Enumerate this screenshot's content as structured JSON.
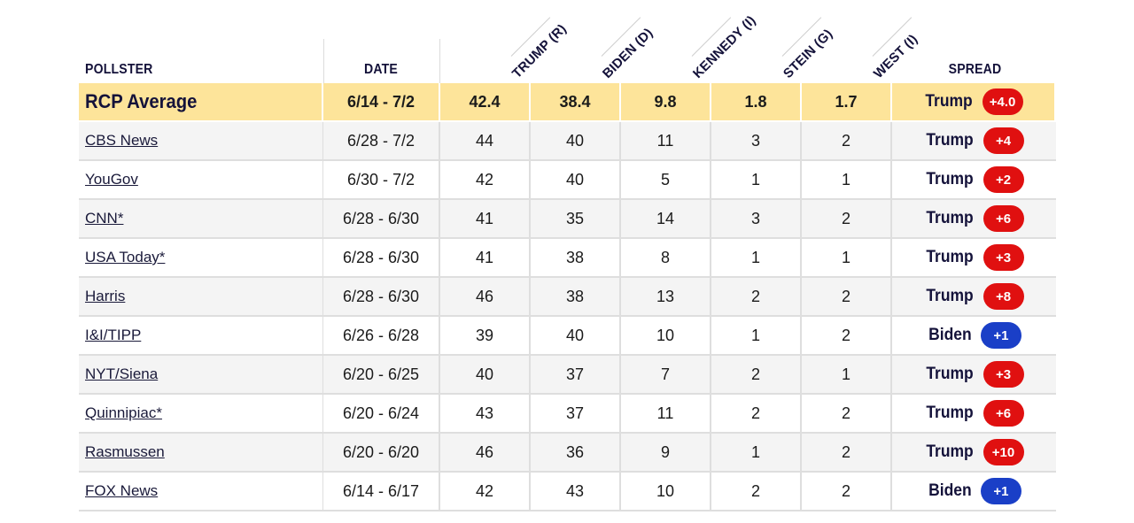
{
  "headers": {
    "pollster": "POLLSTER",
    "date": "DATE",
    "spread": "SPREAD",
    "candidates": [
      "TRUMP (R)",
      "BIDEN (D)",
      "KENNEDY (I)",
      "STEIN (G)",
      "WEST (I)"
    ]
  },
  "colors": {
    "trump": "#e01010",
    "biden": "#1a3fc7",
    "average_row": "#fde49a"
  },
  "average": {
    "pollster": "RCP Average",
    "date": "6/14 - 7/2",
    "values": [
      "42.4",
      "38.4",
      "9.8",
      "1.8",
      "1.7"
    ],
    "leader": "Trump",
    "spread": "+4.0",
    "party": "trump"
  },
  "rows": [
    {
      "pollster": "CBS News",
      "date": "6/28 - 7/2",
      "values": [
        "44",
        "40",
        "11",
        "3",
        "2"
      ],
      "leader": "Trump",
      "spread": "+4",
      "party": "trump"
    },
    {
      "pollster": "YouGov",
      "date": "6/30 - 7/2",
      "values": [
        "42",
        "40",
        "5",
        "1",
        "1"
      ],
      "leader": "Trump",
      "spread": "+2",
      "party": "trump"
    },
    {
      "pollster": "CNN*",
      "date": "6/28 - 6/30",
      "values": [
        "41",
        "35",
        "14",
        "3",
        "2"
      ],
      "leader": "Trump",
      "spread": "+6",
      "party": "trump"
    },
    {
      "pollster": "USA Today*",
      "date": "6/28 - 6/30",
      "values": [
        "41",
        "38",
        "8",
        "1",
        "1"
      ],
      "leader": "Trump",
      "spread": "+3",
      "party": "trump"
    },
    {
      "pollster": "Harris",
      "date": "6/28 - 6/30",
      "values": [
        "46",
        "38",
        "13",
        "2",
        "2"
      ],
      "leader": "Trump",
      "spread": "+8",
      "party": "trump"
    },
    {
      "pollster": "I&I/TIPP",
      "date": "6/26 - 6/28",
      "values": [
        "39",
        "40",
        "10",
        "1",
        "2"
      ],
      "leader": "Biden",
      "spread": "+1",
      "party": "biden"
    },
    {
      "pollster": "NYT/Siena",
      "date": "6/20 - 6/25",
      "values": [
        "40",
        "37",
        "7",
        "2",
        "1"
      ],
      "leader": "Trump",
      "spread": "+3",
      "party": "trump"
    },
    {
      "pollster": "Quinnipiac*",
      "date": "6/20 - 6/24",
      "values": [
        "43",
        "37",
        "11",
        "2",
        "2"
      ],
      "leader": "Trump",
      "spread": "+6",
      "party": "trump"
    },
    {
      "pollster": "Rasmussen",
      "date": "6/20 - 6/20",
      "values": [
        "46",
        "36",
        "9",
        "1",
        "2"
      ],
      "leader": "Trump",
      "spread": "+10",
      "party": "trump"
    },
    {
      "pollster": "FOX News",
      "date": "6/14 - 6/17",
      "values": [
        "42",
        "43",
        "10",
        "2",
        "2"
      ],
      "leader": "Biden",
      "spread": "+1",
      "party": "biden"
    }
  ]
}
